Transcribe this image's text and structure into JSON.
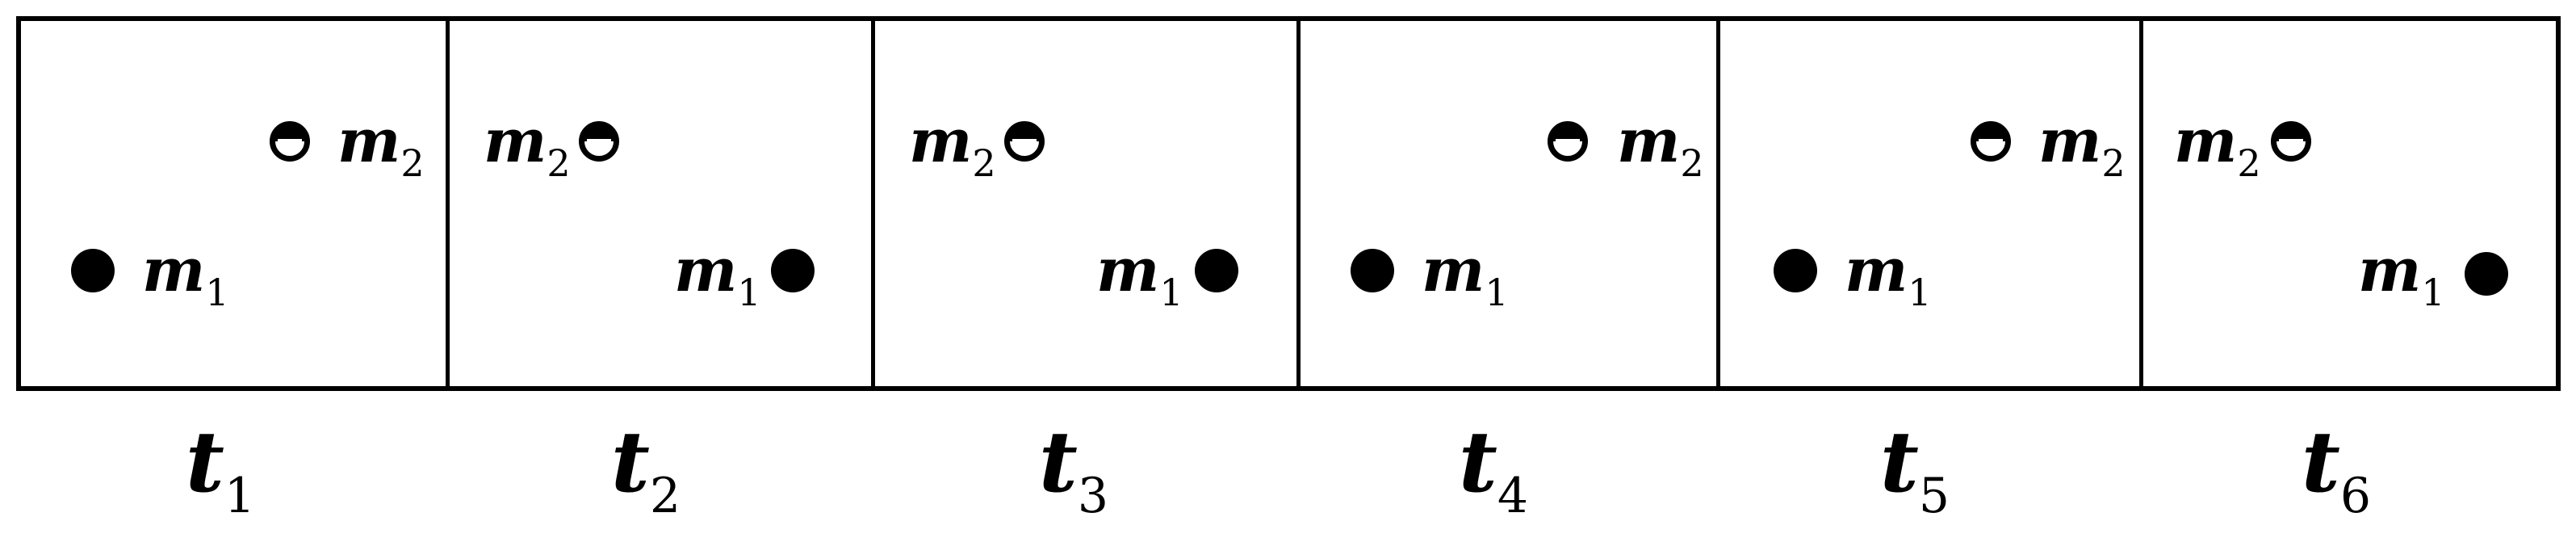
{
  "frames": [
    {
      "m1_label": "m",
      "m1_sub": "1",
      "m2_label": "m",
      "m2_sub": "2",
      "time_label": "t",
      "time_sub": "1"
    },
    {
      "m1_label": "m",
      "m1_sub": "1",
      "m2_label": "m",
      "m2_sub": "2",
      "time_label": "t",
      "time_sub": "2"
    },
    {
      "m1_label": "m",
      "m1_sub": "1",
      "m2_label": "m",
      "m2_sub": "2",
      "time_label": "t",
      "time_sub": "3"
    },
    {
      "m1_label": "m",
      "m1_sub": "1",
      "m2_label": "m",
      "m2_sub": "2",
      "time_label": "t",
      "time_sub": "4"
    },
    {
      "m1_label": "m",
      "m1_sub": "1",
      "m2_label": "m",
      "m2_sub": "2",
      "time_label": "t",
      "time_sub": "5"
    },
    {
      "m1_label": "m",
      "m1_sub": "1",
      "m2_label": "m",
      "m2_sub": "2",
      "time_label": "t",
      "time_sub": "6"
    }
  ],
  "colors": {
    "ink": "#000000",
    "background": "#ffffff"
  },
  "icons": {
    "mass_1": "filled-circle-icon",
    "mass_2": "half-filled-circle-icon"
  }
}
